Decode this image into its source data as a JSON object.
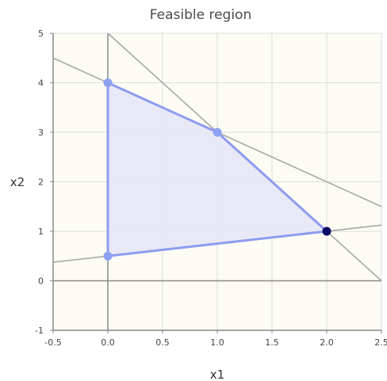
{
  "chart_data": {
    "type": "line",
    "title": "Feasible region",
    "xlabel": "x1",
    "ylabel": "x2",
    "xlim": [
      -0.5,
      2.5
    ],
    "ylim": [
      -1,
      5
    ],
    "x_ticks": [
      "-0.5",
      "0.0",
      "0.5",
      "1.0",
      "1.5",
      "2.0",
      "2.5"
    ],
    "y_ticks": [
      "-1",
      "0",
      "1",
      "2",
      "3",
      "4",
      "5"
    ],
    "grid": true,
    "colors": {
      "background": "#fdfcf4",
      "grid": "#dcdcdc",
      "axis": "#888888",
      "constraint_line": "#a8a8a8",
      "region_fill": "#e4e4f6",
      "region_edge": "#8c9cf0",
      "vertex": "#8ea2f2",
      "optimal_vertex": "#0a0a64"
    },
    "constraints": [
      {
        "points": [
          [
            -0.5,
            4.5
          ],
          [
            2.5,
            1.5
          ]
        ]
      },
      {
        "points": [
          [
            0,
            5
          ],
          [
            2.5,
            0
          ]
        ]
      },
      {
        "points": [
          [
            -0.5,
            0.375
          ],
          [
            2.5,
            1.125
          ]
        ]
      }
    ],
    "feasible_region": [
      [
        0,
        0.5
      ],
      [
        0,
        4
      ],
      [
        1,
        3
      ],
      [
        2,
        1
      ]
    ],
    "vertices": [
      {
        "x": 0,
        "y": 0.5
      },
      {
        "x": 0,
        "y": 4
      },
      {
        "x": 1,
        "y": 3
      }
    ],
    "optimal_vertex": {
      "x": 2,
      "y": 1
    }
  }
}
